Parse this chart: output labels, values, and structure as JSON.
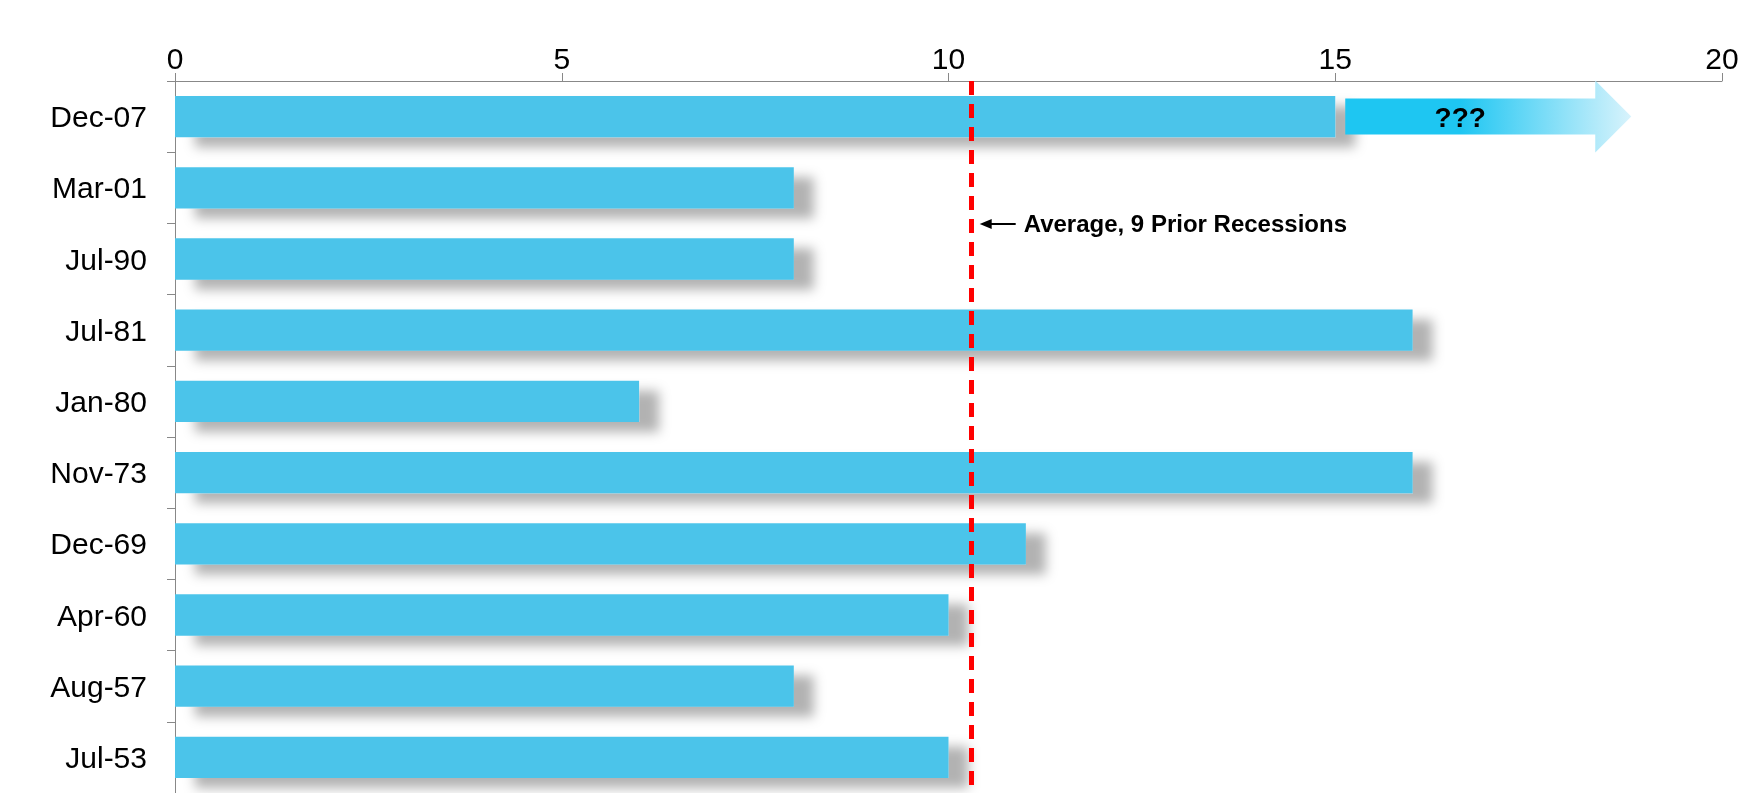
{
  "chart_data": {
    "type": "bar",
    "orientation": "horizontal",
    "categories": [
      "Dec-07",
      "Mar-01",
      "Jul-90",
      "Jul-81",
      "Jan-80",
      "Nov-73",
      "Dec-69",
      "Apr-60",
      "Aug-57",
      "Jul-53"
    ],
    "values": [
      15,
      8,
      8,
      16,
      6,
      16,
      11,
      10,
      8,
      10
    ],
    "color": "#4cc4ea",
    "xlim": [
      0,
      20
    ],
    "xticks": [
      0,
      5,
      10,
      15,
      20
    ],
    "grid": false,
    "ref_lines": [
      {
        "axis": "x",
        "value": 10.3,
        "label": "Average, 9 Prior Recessions",
        "color": "#ff0000",
        "line_style": "dashed"
      }
    ],
    "annotations": [
      "???"
    ]
  }
}
